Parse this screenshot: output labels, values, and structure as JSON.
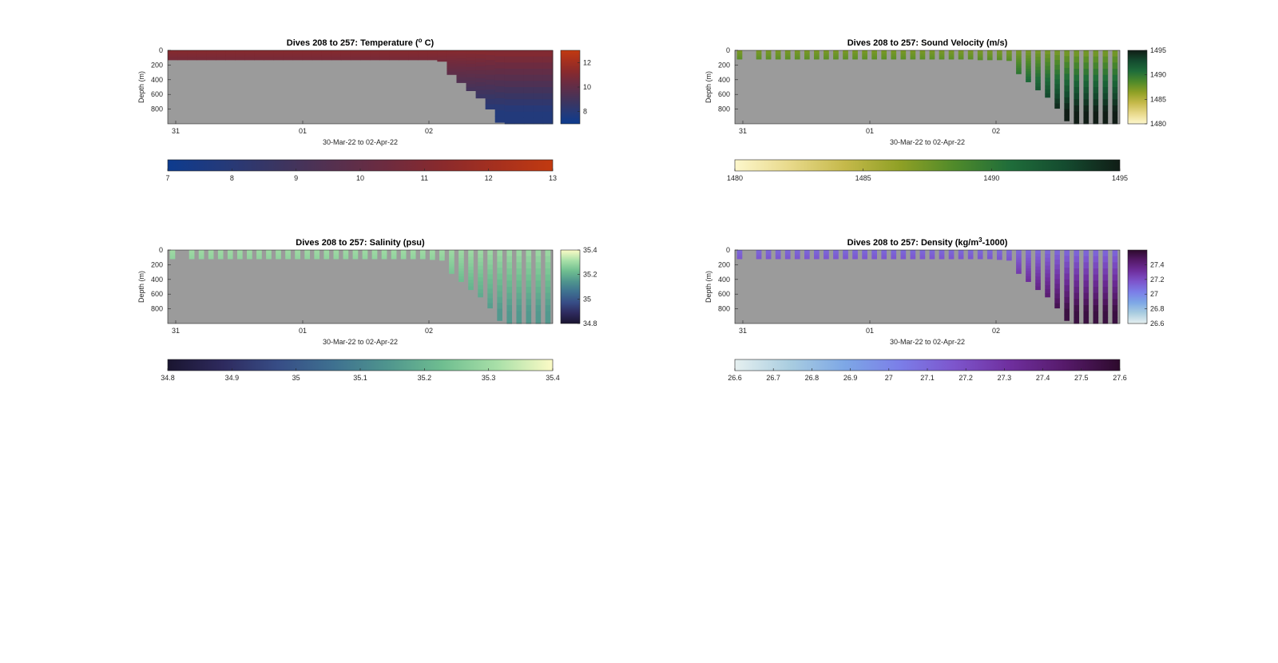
{
  "figure": {
    "panels": [
      {
        "key": "temperature",
        "title": "Dives 208 to 257: Temperature (",
        "title_sup": "o",
        "title_end": " C)",
        "ylabel": "Depth (m)",
        "xlabel": "30-Mar-22 to 02-Apr-22",
        "colormap": [
          "#0d3b8e",
          "#243a7a",
          "#3b3561",
          "#55304f",
          "#6e2b3f",
          "#8a2a2c",
          "#a6301e",
          "#c23a10"
        ],
        "colorbar_right_ticks": [
          "12",
          "10",
          "8"
        ],
        "colorbar_bottom_ticks": [
          "7",
          "8",
          "9",
          "10",
          "11",
          "12",
          "13"
        ]
      },
      {
        "key": "sound_velocity",
        "title": "Dives 208 to 257: Sound Velocity (m/s)",
        "title_sup": "",
        "title_end": "",
        "ylabel": "Depth (m)",
        "xlabel": "30-Mar-22 to 02-Apr-22",
        "colormap": [
          "#fdf7cc",
          "#e8d98a",
          "#c5b94a",
          "#8fa025",
          "#4f8a2a",
          "#1f6d3a",
          "#144b2f",
          "#101d16"
        ],
        "colorbar_right_ticks": [
          "1495",
          "1490",
          "1485",
          "1480"
        ],
        "colorbar_bottom_ticks": [
          "1480",
          "1485",
          "1490",
          "1495"
        ]
      },
      {
        "key": "salinity",
        "title": "Dives 208 to 257: Salinity (psu)",
        "title_sup": "",
        "title_end": "",
        "ylabel": "Depth (m)",
        "xlabel": "30-Mar-22 to 02-Apr-22",
        "colormap": [
          "#1a1530",
          "#2e2a5e",
          "#374d86",
          "#3e7090",
          "#4f958e",
          "#6fbe90",
          "#a9e0a8",
          "#fcfbc6"
        ],
        "colorbar_right_ticks": [
          "35.4",
          "35.2",
          "35",
          "34.8"
        ],
        "colorbar_bottom_ticks": [
          "34.8",
          "34.9",
          "35",
          "35.1",
          "35.2",
          "35.3",
          "35.4"
        ]
      },
      {
        "key": "density",
        "title": "Dives 208 to 257: Density (kg/m",
        "title_sup": "3",
        "title_end": "-1000)",
        "ylabel": "Depth (m)",
        "xlabel": "30-Mar-22 to 02-Apr-22",
        "colormap": [
          "#e6f0f0",
          "#a9cde0",
          "#7da7e6",
          "#7b7ee8",
          "#7d55cc",
          "#6f2f9e",
          "#561a6a",
          "#2d0a2c"
        ],
        "colorbar_right_ticks": [
          "27.4",
          "27.2",
          "27",
          "26.8",
          "26.6"
        ],
        "colorbar_bottom_ticks": [
          "26.6",
          "26.7",
          "26.8",
          "26.9",
          "27",
          "27.1",
          "27.2",
          "27.3",
          "27.4",
          "27.5",
          "27.6"
        ]
      }
    ],
    "y_ticks": [
      "0",
      "200",
      "400",
      "600",
      "800"
    ],
    "x_ticks": [
      "31",
      "01",
      "02"
    ]
  },
  "chart_data": [
    {
      "type": "heatmap",
      "title": "Dives 208 to 257: Temperature (° C)",
      "xlabel": "30-Mar-22 to 02-Apr-22",
      "ylabel": "Depth (m)",
      "x_ticks": [
        "31",
        "01",
        "02"
      ],
      "y_ticks": [
        0,
        200,
        400,
        600,
        800
      ],
      "ylim": [
        0,
        1000
      ],
      "clim": [
        7,
        13
      ],
      "colorbar_ticks_right": [
        8,
        10,
        12
      ],
      "colorbar_ticks_bottom": [
        7,
        8,
        9,
        10,
        11,
        12,
        13
      ],
      "profile_max_depth_m": [
        130,
        130,
        130,
        130,
        130,
        130,
        130,
        130,
        130,
        130,
        130,
        130,
        130,
        130,
        130,
        130,
        130,
        130,
        130,
        130,
        130,
        130,
        130,
        130,
        130,
        130,
        130,
        130,
        150,
        330,
        440,
        550,
        650,
        800,
        980,
        1000,
        1000,
        1000,
        1000,
        1000
      ],
      "surface_value": 11.2,
      "deep_value": 7.8
    },
    {
      "type": "heatmap",
      "title": "Dives 208 to 257: Sound Velocity (m/s)",
      "xlabel": "30-Mar-22 to 02-Apr-22",
      "ylabel": "Depth (m)",
      "x_ticks": [
        "31",
        "01",
        "02"
      ],
      "y_ticks": [
        0,
        200,
        400,
        600,
        800
      ],
      "ylim": [
        0,
        1000
      ],
      "clim": [
        1480,
        1495
      ],
      "colorbar_ticks_right": [
        1480,
        1485,
        1490,
        1495
      ],
      "colorbar_ticks_bottom": [
        1480,
        1485,
        1490,
        1495
      ],
      "profile_max_depth_m": [
        120,
        120,
        120,
        120,
        120,
        120,
        120,
        120,
        120,
        120,
        120,
        120,
        120,
        120,
        120,
        120,
        120,
        120,
        120,
        120,
        120,
        120,
        120,
        120,
        120,
        130,
        130,
        130,
        140,
        320,
        430,
        540,
        640,
        790,
        960,
        1000,
        1000,
        1000,
        1000,
        1000
      ],
      "value_range_shown": [
        1487,
        1495
      ]
    },
    {
      "type": "heatmap",
      "title": "Dives 208 to 257: Salinity (psu)",
      "xlabel": "30-Mar-22 to 02-Apr-22",
      "ylabel": "Depth (m)",
      "x_ticks": [
        "31",
        "01",
        "02"
      ],
      "y_ticks": [
        0,
        200,
        400,
        600,
        800
      ],
      "ylim": [
        0,
        1000
      ],
      "clim": [
        34.8,
        35.4
      ],
      "colorbar_ticks_right": [
        34.8,
        35,
        35.2,
        35.4
      ],
      "colorbar_ticks_bottom": [
        34.8,
        34.9,
        35,
        35.1,
        35.2,
        35.3,
        35.4
      ],
      "profile_max_depth_m": [
        120,
        120,
        120,
        120,
        120,
        120,
        120,
        120,
        120,
        120,
        120,
        120,
        120,
        120,
        120,
        120,
        120,
        120,
        120,
        120,
        120,
        120,
        120,
        120,
        120,
        120,
        120,
        130,
        140,
        320,
        430,
        540,
        640,
        790,
        960,
        1000,
        1000,
        1000,
        1000,
        1000
      ],
      "surface_value": 35.3,
      "deep_value": 35.15
    },
    {
      "type": "heatmap",
      "title": "Dives 208 to 257: Density (kg/m³-1000)",
      "xlabel": "30-Mar-22 to 02-Apr-22",
      "ylabel": "Depth (m)",
      "x_ticks": [
        "31",
        "01",
        "02"
      ],
      "y_ticks": [
        0,
        200,
        400,
        600,
        800
      ],
      "ylim": [
        0,
        1000
      ],
      "clim": [
        26.6,
        27.6
      ],
      "colorbar_ticks_right": [
        26.6,
        26.8,
        27,
        27.2,
        27.4
      ],
      "colorbar_ticks_bottom": [
        26.6,
        26.7,
        26.8,
        26.9,
        27,
        27.1,
        27.2,
        27.3,
        27.4,
        27.5,
        27.6
      ],
      "profile_max_depth_m": [
        120,
        120,
        120,
        120,
        120,
        120,
        120,
        120,
        120,
        120,
        120,
        120,
        120,
        120,
        120,
        120,
        120,
        120,
        120,
        120,
        120,
        120,
        120,
        120,
        120,
        120,
        120,
        130,
        140,
        320,
        430,
        540,
        640,
        790,
        960,
        1000,
        1000,
        1000,
        1000,
        1000
      ],
      "surface_value": 27.1,
      "deep_value": 27.55
    }
  ]
}
